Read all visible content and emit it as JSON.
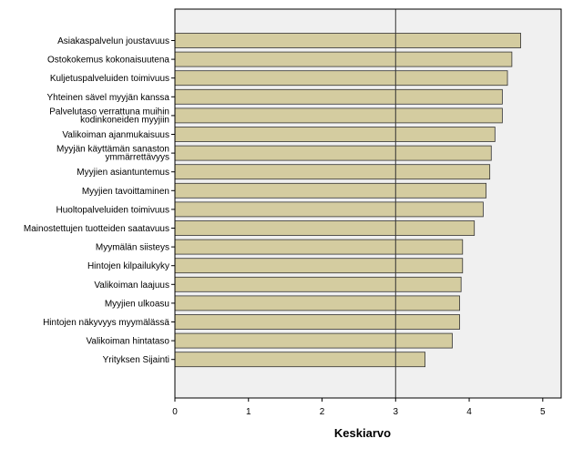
{
  "chart_data": {
    "type": "bar",
    "orientation": "horizontal",
    "title": "",
    "xlabel": "Keskiarvo",
    "ylabel": "",
    "xlim": [
      0,
      5.25
    ],
    "xticks": [
      "0",
      "1",
      "2",
      "3",
      "4",
      "5"
    ],
    "reference_line": 3,
    "grid": false,
    "legend": "none",
    "colors": {
      "bar_fill": "#d4cca0",
      "bar_stroke": "#333333",
      "plot_bg": "#f0f0f0",
      "axis": "#000000"
    },
    "categories": [
      [
        "Asiakaspalvelun joustavuus"
      ],
      [
        "Ostokokemus kokonaisuutena"
      ],
      [
        "Kuljetuspalveluiden toimivuus"
      ],
      [
        "Yhteinen sävel myyjän kanssa"
      ],
      [
        "Palvelutaso verrattuna muihin",
        "kodinkoneiden myyjiin"
      ],
      [
        "Valikoiman ajanmukaisuus"
      ],
      [
        "Myyjän käyttämän sanaston",
        "ymmärrettävyys"
      ],
      [
        "Myyjien asiantuntemus"
      ],
      [
        "Myyjien tavoittaminen"
      ],
      [
        "Huoltopalveluiden toimivuus"
      ],
      [
        "Mainostettujen tuotteiden saatavuus"
      ],
      [
        "Myymälän siisteys"
      ],
      [
        "Hintojen kilpailukyky"
      ],
      [
        "Valikoiman laajuus"
      ],
      [
        "Myyjien ulkoasu"
      ],
      [
        "Hintojen näkyvyys myymälässä"
      ],
      [
        "Valikoiman hintataso"
      ],
      [
        "Yrityksen Sijainti"
      ]
    ],
    "values": [
      4.7,
      4.58,
      4.52,
      4.45,
      4.45,
      4.35,
      4.3,
      4.28,
      4.23,
      4.19,
      4.07,
      3.91,
      3.91,
      3.89,
      3.87,
      3.87,
      3.77,
      3.4
    ]
  }
}
